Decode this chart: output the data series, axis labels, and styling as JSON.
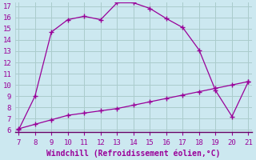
{
  "xlabel": "Windchill (Refroidissement éolien,°C)",
  "line1_x": [
    7,
    8,
    9,
    10,
    11,
    12,
    13,
    14,
    15,
    16,
    17,
    18,
    19,
    20,
    21
  ],
  "line1_y": [
    6.0,
    9.0,
    14.7,
    15.8,
    16.1,
    15.8,
    17.3,
    17.3,
    16.8,
    15.9,
    15.1,
    13.1,
    9.5,
    7.2,
    10.3
  ],
  "line2_x": [
    7,
    8,
    9,
    10,
    11,
    12,
    13,
    14,
    15,
    16,
    17,
    18,
    19,
    20,
    21
  ],
  "line2_y": [
    6.1,
    6.5,
    6.9,
    7.3,
    7.5,
    7.7,
    7.9,
    8.2,
    8.5,
    8.8,
    9.1,
    9.4,
    9.7,
    10.0,
    10.3
  ],
  "line_color": "#990099",
  "bg_color": "#cce8f0",
  "grid_color": "#aacccc",
  "tick_color": "#990099",
  "xlabel_color": "#990099",
  "spine_color": "#660066",
  "xlim": [
    7,
    21
  ],
  "ylim": [
    6,
    17
  ],
  "yticks": [
    6,
    7,
    8,
    9,
    10,
    11,
    12,
    13,
    14,
    15,
    16,
    17
  ],
  "xticks": [
    7,
    8,
    9,
    10,
    11,
    12,
    13,
    14,
    15,
    16,
    17,
    18,
    19,
    20,
    21
  ]
}
